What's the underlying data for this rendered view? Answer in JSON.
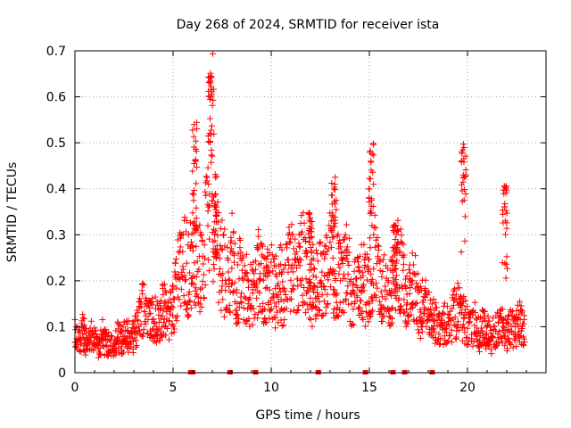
{
  "chart_data": {
    "type": "scatter",
    "title": "Day 268 of 2024, SRMTID for receiver ista",
    "xlabel": "GPS time / hours",
    "ylabel": "SRMTID / TECUs",
    "xlim": [
      0,
      24
    ],
    "ylim": [
      0,
      0.7
    ],
    "x_ticks": [
      0,
      5,
      10,
      15,
      20
    ],
    "x_tick_labels": [
      "0",
      "5",
      "10",
      "15",
      "20"
    ],
    "y_ticks": [
      0,
      0.1,
      0.2,
      0.3,
      0.4,
      0.5,
      0.6,
      0.7
    ],
    "y_tick_labels": [
      "0",
      "0.1",
      "0.2",
      "0.3",
      "0.4",
      "0.5",
      "0.6",
      "0.7"
    ],
    "grid": true,
    "marker": "plus",
    "color": "#ff0000",
    "series": [
      {
        "name": "SRMTID",
        "x": [
          0.0,
          0.2,
          0.4,
          0.6,
          0.8,
          1.0,
          1.2,
          1.4,
          1.6,
          1.8,
          2.0,
          2.2,
          2.4,
          2.6,
          2.8,
          3.0,
          3.2,
          3.4,
          3.6,
          3.8,
          4.0,
          4.2,
          4.4,
          4.6,
          4.8,
          5.0,
          5.2,
          5.4,
          5.6,
          5.8,
          6.0,
          6.2,
          6.4,
          6.6,
          6.8,
          7.0,
          7.2,
          7.4,
          7.6,
          7.8,
          8.0,
          8.2,
          8.4,
          8.6,
          8.8,
          9.0,
          9.2,
          9.4,
          9.6,
          9.8,
          10.0,
          10.2,
          10.4,
          10.6,
          10.8,
          11.0,
          11.2,
          11.4,
          11.6,
          11.8,
          12.0,
          12.2,
          12.4,
          12.6,
          12.8,
          13.0,
          13.2,
          13.4,
          13.6,
          13.8,
          14.0,
          14.2,
          14.4,
          14.6,
          14.8,
          15.0,
          15.2,
          15.4,
          15.6,
          15.8,
          16.0,
          16.2,
          16.4,
          16.6,
          16.8,
          17.0,
          17.2,
          17.4,
          17.6,
          17.8,
          18.0,
          18.2,
          18.4,
          18.6,
          18.8,
          19.0,
          19.2,
          19.4,
          19.6,
          19.8,
          20.0,
          20.2,
          20.4,
          20.6,
          20.8,
          21.0,
          21.2,
          21.4,
          21.6,
          21.8,
          22.0,
          22.2,
          22.4,
          22.6,
          22.8
        ],
        "y": [
          0.08,
          0.07,
          0.09,
          0.06,
          0.08,
          0.07,
          0.05,
          0.08,
          0.06,
          0.07,
          0.06,
          0.08,
          0.07,
          0.09,
          0.07,
          0.08,
          0.1,
          0.14,
          0.15,
          0.13,
          0.12,
          0.11,
          0.13,
          0.14,
          0.12,
          0.15,
          0.2,
          0.22,
          0.25,
          0.21,
          0.28,
          0.24,
          0.22,
          0.26,
          0.35,
          0.5,
          0.3,
          0.25,
          0.22,
          0.2,
          0.24,
          0.18,
          0.21,
          0.17,
          0.2,
          0.16,
          0.19,
          0.23,
          0.18,
          0.2,
          0.22,
          0.17,
          0.2,
          0.18,
          0.21,
          0.24,
          0.2,
          0.22,
          0.25,
          0.2,
          0.19,
          0.17,
          0.22,
          0.19,
          0.21,
          0.25,
          0.2,
          0.22,
          0.18,
          0.24,
          0.2,
          0.16,
          0.19,
          0.22,
          0.18,
          0.2,
          0.25,
          0.22,
          0.16,
          0.19,
          0.14,
          0.2,
          0.24,
          0.22,
          0.18,
          0.15,
          0.2,
          0.17,
          0.13,
          0.16,
          0.12,
          0.14,
          0.1,
          0.09,
          0.11,
          0.1,
          0.12,
          0.13,
          0.14,
          0.12,
          0.1,
          0.09,
          0.11,
          0.08,
          0.1,
          0.09,
          0.07,
          0.1,
          0.09,
          0.11,
          0.08,
          0.1,
          0.09,
          0.11,
          0.1
        ],
        "spikes": [
          {
            "x": 6.9,
            "y": 0.66
          },
          {
            "x": 6.1,
            "y": 0.55
          },
          {
            "x": 7.1,
            "y": 0.4
          },
          {
            "x": 15.1,
            "y": 0.5
          },
          {
            "x": 19.8,
            "y": 0.5
          },
          {
            "x": 21.9,
            "y": 0.41
          },
          {
            "x": 13.2,
            "y": 0.43
          },
          {
            "x": 12.0,
            "y": 0.35
          },
          {
            "x": 16.3,
            "y": 0.33
          }
        ]
      }
    ],
    "baseline_markers_x": [
      5.9,
      6.0,
      7.9,
      9.2,
      12.4,
      14.8,
      16.2,
      16.8,
      18.2
    ]
  }
}
